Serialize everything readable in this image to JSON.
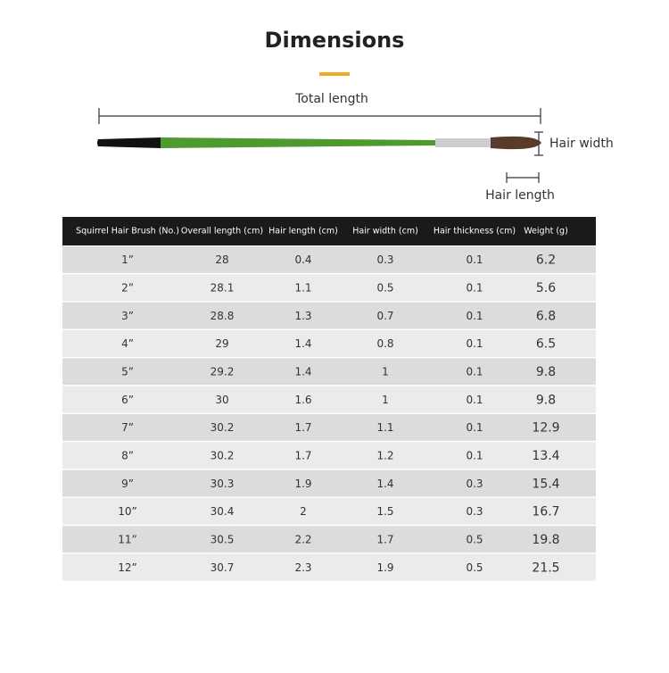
{
  "header": {
    "title": "Dimensions"
  },
  "diagram": {
    "total_length": "Total length",
    "hair_width": "Hair width",
    "hair_length": "Hair length"
  },
  "table": {
    "columns": [
      "Squirrel Hair Brush (No.)",
      "Overall length (cm)",
      "Hair length (cm)",
      "Hair width (cm)",
      "Hair thickness (cm)",
      "Weight (g)"
    ],
    "rows": [
      [
        "1”",
        "28",
        "0.4",
        "0.3",
        "0.1",
        "6.2"
      ],
      [
        "2”",
        "28.1",
        "1.1",
        "0.5",
        "0.1",
        "5.6"
      ],
      [
        "3”",
        "28.8",
        "1.3",
        "0.7",
        "0.1",
        "6.8"
      ],
      [
        "4”",
        "29",
        "1.4",
        "0.8",
        "0.1",
        "6.5"
      ],
      [
        "5”",
        "29.2",
        "1.4",
        "1",
        "0.1",
        "9.8"
      ],
      [
        "6”",
        "30",
        "1.6",
        "1",
        "0.1",
        "9.8"
      ],
      [
        "7”",
        "30.2",
        "1.7",
        "1.1",
        "0.1",
        "12.9"
      ],
      [
        "8”",
        "30.2",
        "1.7",
        "1.2",
        "0.1",
        "13.4"
      ],
      [
        "9”",
        "30.3",
        "1.9",
        "1.4",
        "0.3",
        "15.4"
      ],
      [
        "10”",
        "30.4",
        "2",
        "1.5",
        "0.3",
        "16.7"
      ],
      [
        "11”",
        "30.5",
        "2.2",
        "1.7",
        "0.5",
        "19.8"
      ],
      [
        "12”",
        "30.7",
        "2.3",
        "1.9",
        "0.5",
        "21.5"
      ]
    ]
  }
}
